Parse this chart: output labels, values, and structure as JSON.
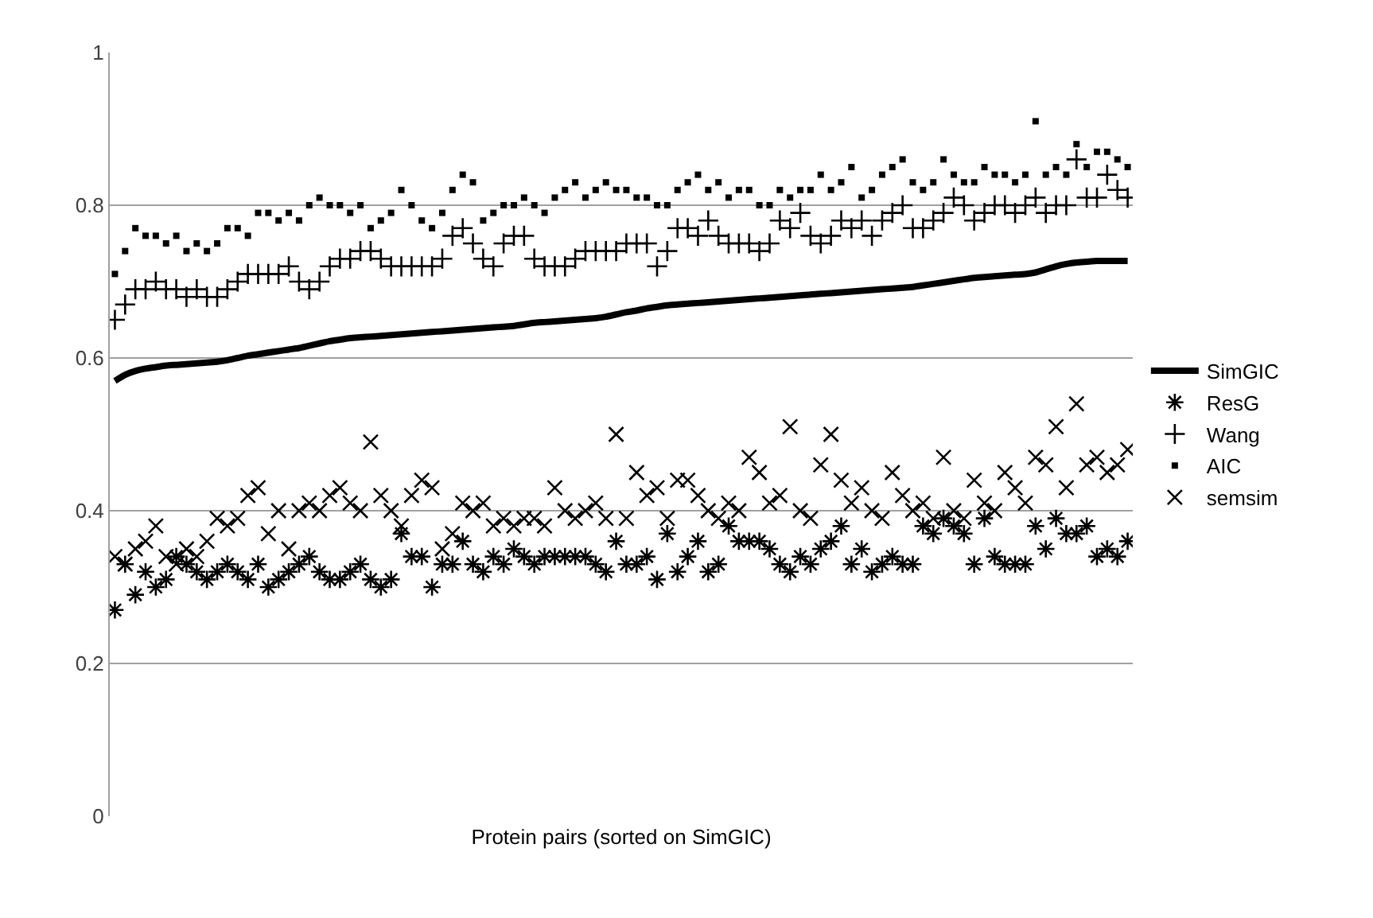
{
  "chart_data": {
    "type": "scatter",
    "xlabel": "Protein pairs (sorted on SimGIC)",
    "categories": [
      null,
      null,
      null,
      null,
      null,
      null,
      null,
      null,
      null,
      null,
      null,
      null,
      null,
      null,
      null,
      null,
      null,
      null,
      null,
      null,
      null,
      null,
      null,
      null,
      null,
      null,
      null,
      null,
      null,
      null,
      null,
      null,
      null,
      null,
      null,
      null,
      null,
      null,
      null,
      null,
      null,
      null,
      null,
      null,
      null,
      null,
      null,
      null,
      null,
      null,
      null,
      null,
      null,
      null,
      null,
      null,
      null,
      null,
      null,
      null,
      null,
      null,
      null,
      null,
      null,
      null,
      null,
      null,
      null,
      null,
      null,
      null,
      null,
      null,
      null,
      null,
      null,
      null,
      null,
      null,
      null,
      null,
      null,
      null,
      null,
      null,
      null,
      null,
      null,
      null,
      null,
      null,
      null,
      null,
      null,
      null,
      null,
      null,
      null,
      null
    ],
    "ylim": [
      0,
      1
    ],
    "yticks": [
      0,
      0.2,
      0.4,
      0.6,
      0.8,
      1
    ],
    "grid": "y",
    "legend": "right",
    "series": [
      {
        "name": "SimGIC",
        "type": "line",
        "marker": "none",
        "color": "#000000",
        "values": [
          0.57,
          0.578,
          0.583,
          0.586,
          0.588,
          0.59,
          0.591,
          0.592,
          0.593,
          0.594,
          0.595,
          0.597,
          0.6,
          0.603,
          0.605,
          0.607,
          0.609,
          0.611,
          0.613,
          0.616,
          0.619,
          0.622,
          0.624,
          0.626,
          0.627,
          0.628,
          0.629,
          0.63,
          0.631,
          0.632,
          0.633,
          0.634,
          0.635,
          0.636,
          0.637,
          0.638,
          0.639,
          0.64,
          0.641,
          0.642,
          0.644,
          0.646,
          0.647,
          0.648,
          0.649,
          0.65,
          0.651,
          0.652,
          0.654,
          0.657,
          0.66,
          0.662,
          0.665,
          0.667,
          0.669,
          0.67,
          0.671,
          0.672,
          0.673,
          0.674,
          0.675,
          0.676,
          0.677,
          0.678,
          0.679,
          0.68,
          0.681,
          0.682,
          0.683,
          0.684,
          0.685,
          0.686,
          0.687,
          0.688,
          0.689,
          0.69,
          0.691,
          0.692,
          0.693,
          0.695,
          0.697,
          0.699,
          0.701,
          0.703,
          0.705,
          0.706,
          0.707,
          0.708,
          0.709,
          0.71,
          0.712,
          0.716,
          0.72,
          0.723,
          0.725,
          0.726,
          0.727,
          0.727,
          0.727,
          0.727
        ]
      },
      {
        "name": "ResG",
        "marker": "cross",
        "color": "#000000",
        "values": [
          0.27,
          0.33,
          0.29,
          0.32,
          0.3,
          0.31,
          0.34,
          0.33,
          0.32,
          0.31,
          0.32,
          0.33,
          0.32,
          0.31,
          0.33,
          0.3,
          0.31,
          0.32,
          0.33,
          0.34,
          0.32,
          0.31,
          0.31,
          0.32,
          0.33,
          0.31,
          0.3,
          0.31,
          0.37,
          0.34,
          0.34,
          0.3,
          0.33,
          0.33,
          0.36,
          0.33,
          0.32,
          0.34,
          0.33,
          0.35,
          0.34,
          0.33,
          0.34,
          0.34,
          0.34,
          0.34,
          0.34,
          0.33,
          0.32,
          0.36,
          0.33,
          0.33,
          0.34,
          0.31,
          0.37,
          0.32,
          0.34,
          0.36,
          0.32,
          0.33,
          0.38,
          0.36,
          0.36,
          0.36,
          0.35,
          0.33,
          0.32,
          0.34,
          0.33,
          0.35,
          0.36,
          0.38,
          0.33,
          0.35,
          0.32,
          0.33,
          0.34,
          0.33,
          0.33,
          0.38,
          0.37,
          0.39,
          0.38,
          0.37,
          0.33,
          0.39,
          0.34,
          0.33,
          0.33,
          0.33,
          0.38,
          0.35,
          0.39,
          0.37,
          0.37,
          0.38,
          0.34,
          0.35,
          0.34,
          0.36
        ]
      },
      {
        "name": "Wang",
        "marker": "cross",
        "color": "#000000",
        "values": [
          0.65,
          0.67,
          0.69,
          0.69,
          0.7,
          0.69,
          0.69,
          0.68,
          0.69,
          0.68,
          0.68,
          0.69,
          0.7,
          0.71,
          0.71,
          0.71,
          0.71,
          0.72,
          0.7,
          0.69,
          0.7,
          0.72,
          0.73,
          0.73,
          0.74,
          0.74,
          0.73,
          0.72,
          0.72,
          0.72,
          0.72,
          0.72,
          0.73,
          0.76,
          0.77,
          0.75,
          0.73,
          0.72,
          0.75,
          0.76,
          0.76,
          0.73,
          0.72,
          0.72,
          0.72,
          0.73,
          0.74,
          0.74,
          0.74,
          0.74,
          0.75,
          0.75,
          0.75,
          0.72,
          0.74,
          0.77,
          0.77,
          0.76,
          0.78,
          0.76,
          0.75,
          0.75,
          0.75,
          0.74,
          0.75,
          0.78,
          0.77,
          0.79,
          0.76,
          0.75,
          0.76,
          0.78,
          0.77,
          0.78,
          0.76,
          0.78,
          0.79,
          0.8,
          0.77,
          0.77,
          0.78,
          0.79,
          0.81,
          0.8,
          0.78,
          0.79,
          0.8,
          0.8,
          0.79,
          0.8,
          0.81,
          0.79,
          0.8,
          0.8,
          0.86,
          0.81,
          0.81,
          0.84,
          0.82,
          0.81
        ]
      },
      {
        "name": "AIC",
        "marker": "square",
        "color": "#000000",
        "values": [
          0.71,
          0.74,
          0.77,
          0.76,
          0.76,
          0.75,
          0.76,
          0.74,
          0.75,
          0.74,
          0.75,
          0.77,
          0.77,
          0.76,
          0.79,
          0.79,
          0.78,
          0.79,
          0.78,
          0.8,
          0.81,
          0.8,
          0.8,
          0.79,
          0.8,
          0.77,
          0.78,
          0.79,
          0.82,
          0.8,
          0.78,
          0.77,
          0.79,
          0.82,
          0.84,
          0.83,
          0.78,
          0.79,
          0.8,
          0.8,
          0.81,
          0.8,
          0.79,
          0.81,
          0.82,
          0.83,
          0.81,
          0.82,
          0.83,
          0.82,
          0.82,
          0.81,
          0.81,
          0.8,
          0.8,
          0.82,
          0.83,
          0.84,
          0.82,
          0.83,
          0.81,
          0.82,
          0.82,
          0.8,
          0.8,
          0.82,
          0.81,
          0.82,
          0.82,
          0.84,
          0.82,
          0.83,
          0.85,
          0.81,
          0.82,
          0.84,
          0.85,
          0.86,
          0.83,
          0.82,
          0.83,
          0.86,
          0.84,
          0.83,
          0.83,
          0.85,
          0.84,
          0.84,
          0.83,
          0.84,
          0.91,
          0.84,
          0.85,
          0.84,
          0.88,
          0.85,
          0.87,
          0.87,
          0.86,
          0.85
        ]
      },
      {
        "name": "semsim",
        "marker": "x",
        "color": "#000000",
        "values": [
          0.34,
          0.33,
          0.35,
          0.36,
          0.38,
          0.34,
          0.33,
          0.35,
          0.34,
          0.36,
          0.39,
          0.38,
          0.39,
          0.42,
          0.43,
          0.37,
          0.4,
          0.35,
          0.4,
          0.41,
          0.4,
          0.42,
          0.43,
          0.41,
          0.4,
          0.49,
          0.42,
          0.4,
          0.38,
          0.42,
          0.44,
          0.43,
          0.35,
          0.37,
          0.41,
          0.4,
          0.41,
          0.38,
          0.39,
          0.38,
          0.39,
          0.39,
          0.38,
          0.43,
          0.4,
          0.39,
          0.4,
          0.41,
          0.39,
          0.5,
          0.39,
          0.45,
          0.42,
          0.43,
          0.39,
          0.44,
          0.44,
          0.42,
          0.4,
          0.39,
          0.41,
          0.4,
          0.47,
          0.45,
          0.41,
          0.42,
          0.51,
          0.4,
          0.39,
          0.46,
          0.5,
          0.44,
          0.41,
          0.43,
          0.4,
          0.39,
          0.45,
          0.42,
          0.4,
          0.41,
          0.39,
          0.47,
          0.4,
          0.39,
          0.44,
          0.41,
          0.4,
          0.45,
          0.43,
          0.41,
          0.47,
          0.46,
          0.51,
          0.43,
          0.54,
          0.46,
          0.47,
          0.45,
          0.46,
          0.48
        ]
      }
    ]
  }
}
